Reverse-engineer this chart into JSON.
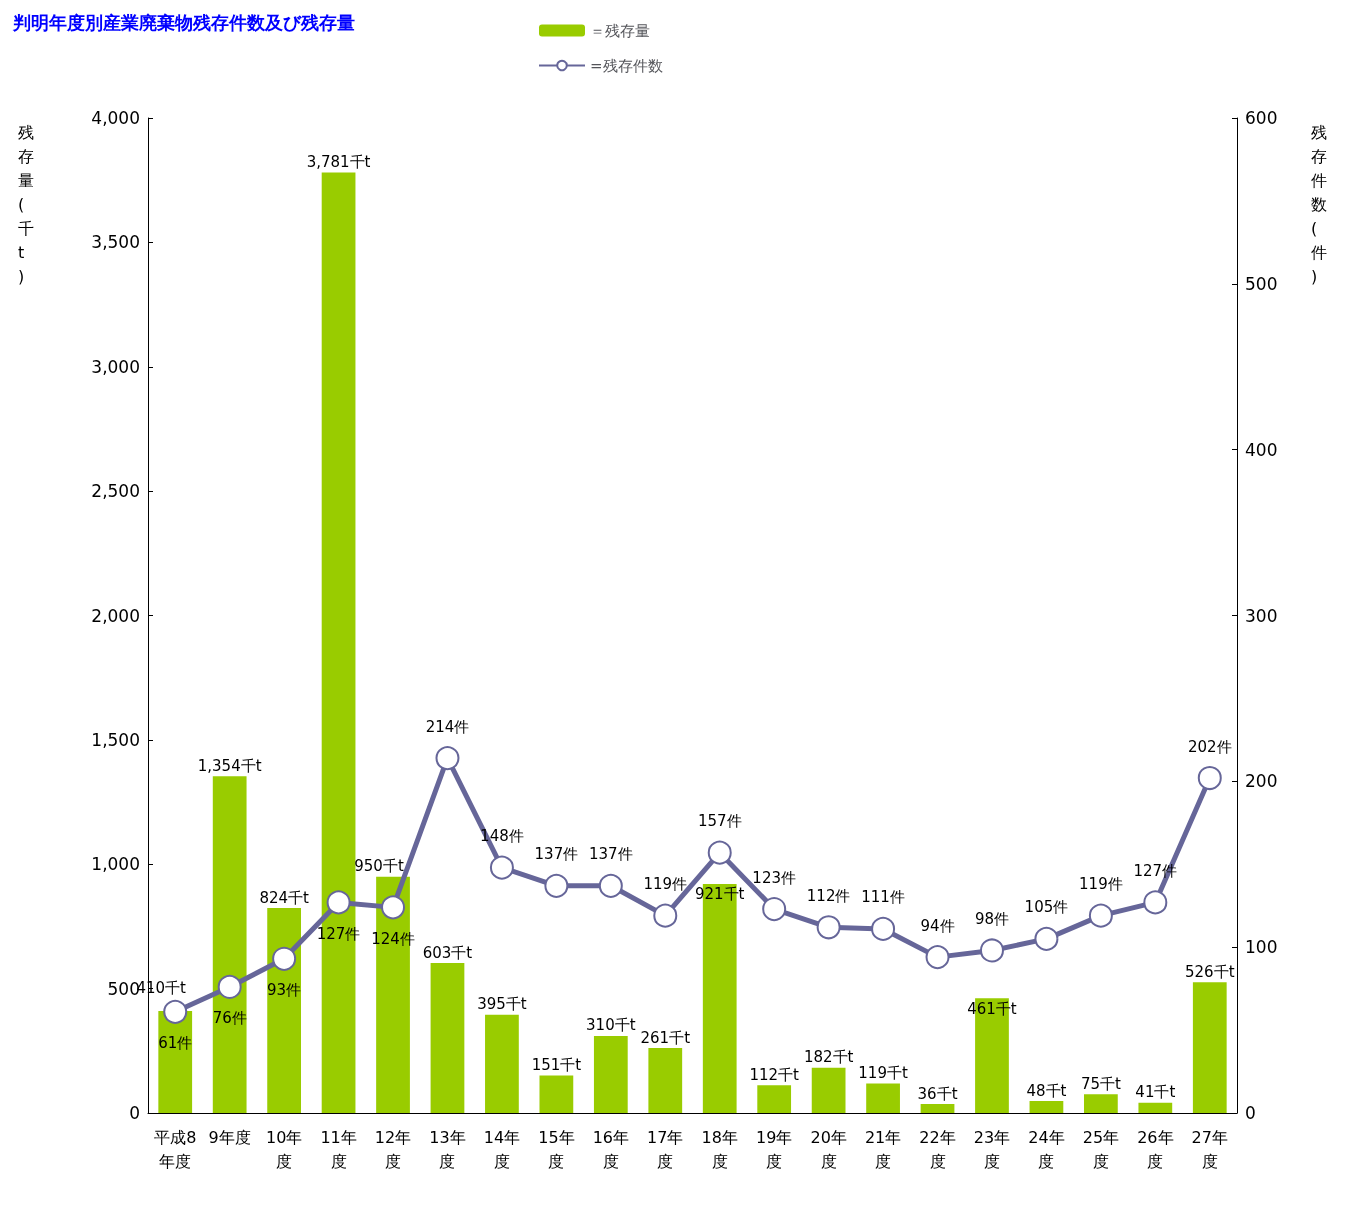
{
  "chart_data": {
    "type": "bar",
    "title": "判明年度別産業廃棄物残存件数及び残存量",
    "ylabel": "残存量(千t)",
    "y2label": "残存件数(件)",
    "categories": [
      "平成8年度",
      "9年度",
      "10年度",
      "11年度",
      "12年度",
      "13年度",
      "14年度",
      "15年度",
      "16年度",
      "17年度",
      "18年度",
      "19年度",
      "20年度",
      "21年度",
      "22年度",
      "23年度",
      "24年度",
      "25年度",
      "26年度",
      "27年度"
    ],
    "series": [
      {
        "name": "＝残存量",
        "color": "#99cc00",
        "values": [
          410,
          1354,
          824,
          3781,
          950,
          603,
          395,
          151,
          310,
          261,
          921,
          112,
          182,
          119,
          36,
          461,
          48,
          75,
          41,
          526
        ],
        "value_labels": [
          "410千t",
          "1,354千t",
          "824千t",
          "3,781千t",
          "950千t",
          "603千t",
          "395千t",
          "151千t",
          "310千t",
          "261千t",
          "921千t",
          "112千t",
          "182千t",
          "119千t",
          "36千t",
          "461千t",
          "48千t",
          "75千t",
          "41千t",
          "526千t"
        ]
      },
      {
        "name": "=残存件数",
        "type": "line",
        "axis": "y2",
        "color": "#666699",
        "marker": "circle",
        "values": [
          61,
          76,
          93,
          127,
          124,
          214,
          148,
          137,
          137,
          119,
          157,
          123,
          112,
          111,
          94,
          98,
          105,
          119,
          127,
          202
        ],
        "value_labels": [
          "61件",
          "76件",
          "93件",
          "127件",
          "124件",
          "214件",
          "148件",
          "137件",
          "137件",
          "119件",
          "157件",
          "123件",
          "112件",
          "111件",
          "94件",
          "98件",
          "105件",
          "119件",
          "127件",
          "202件"
        ]
      }
    ],
    "ylim": [
      0,
      4000
    ],
    "yticks": [
      0,
      500,
      {
        "value": 1000,
        "label": "1,000"
      },
      {
        "value": 1500,
        "label": "1,500"
      },
      {
        "value": 2000,
        "label": "2,000"
      },
      {
        "value": 2500,
        "label": "2,500"
      },
      {
        "value": 3000,
        "label": "3,000"
      },
      {
        "value": 3500,
        "label": "3,500"
      },
      {
        "value": 4000,
        "label": "4,000"
      }
    ],
    "y2lim": [
      0,
      600
    ],
    "y2ticks": [
      0,
      100,
      200,
      300,
      400,
      500,
      600
    ],
    "legend": "top",
    "grid": false
  }
}
